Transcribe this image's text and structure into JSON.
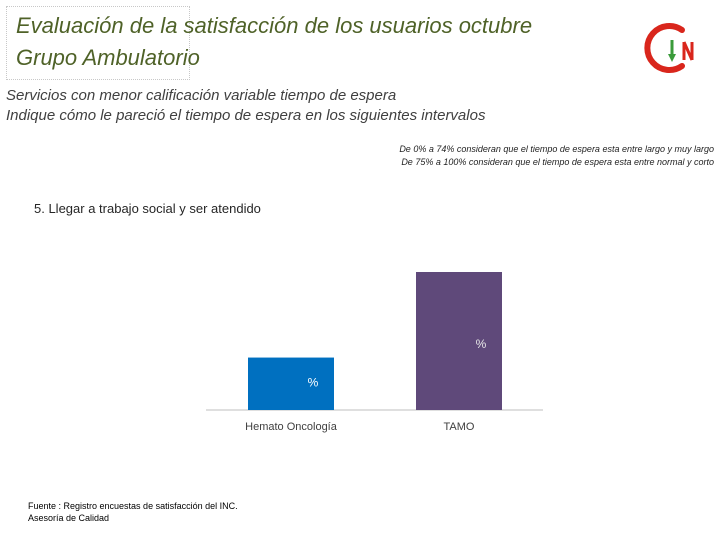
{
  "header": {
    "title_line1": "Evaluación de la satisfacción de los usuarios octubre",
    "title_line2": "Grupo Ambulatorio"
  },
  "logo": {
    "icon": "inc-logo-icon",
    "letters": "IN",
    "colors": {
      "red": "#d9261c",
      "green": "#3a9b3a"
    }
  },
  "subtitle": {
    "line1": "Servicios con menor calificación variable tiempo de espera",
    "line2": "Indique cómo le pareció el tiempo de espera en los siguientes intervalos"
  },
  "notes": {
    "line1": "De 0% a 74% consideran que el tiempo de espera esta entre largo y muy largo",
    "line2": "De 75%  a 100% consideran que el tiempo de espera esta entre normal y corto"
  },
  "chart_title": "5. Llegar a trabajo social y ser atendido",
  "chart_data": {
    "type": "bar",
    "categories": [
      "Hemato Oncología",
      "TAMO"
    ],
    "values": [
      38,
      100
    ],
    "data_labels": [
      "%",
      "%"
    ],
    "colors": [
      "#0070c0",
      "#5f497a"
    ],
    "ylim": [
      0,
      100
    ],
    "grid": false
  },
  "source": {
    "line1": "Fuente : Registro encuestas de satisfacción del INC.",
    "line2": "Asesoría de Calidad"
  }
}
